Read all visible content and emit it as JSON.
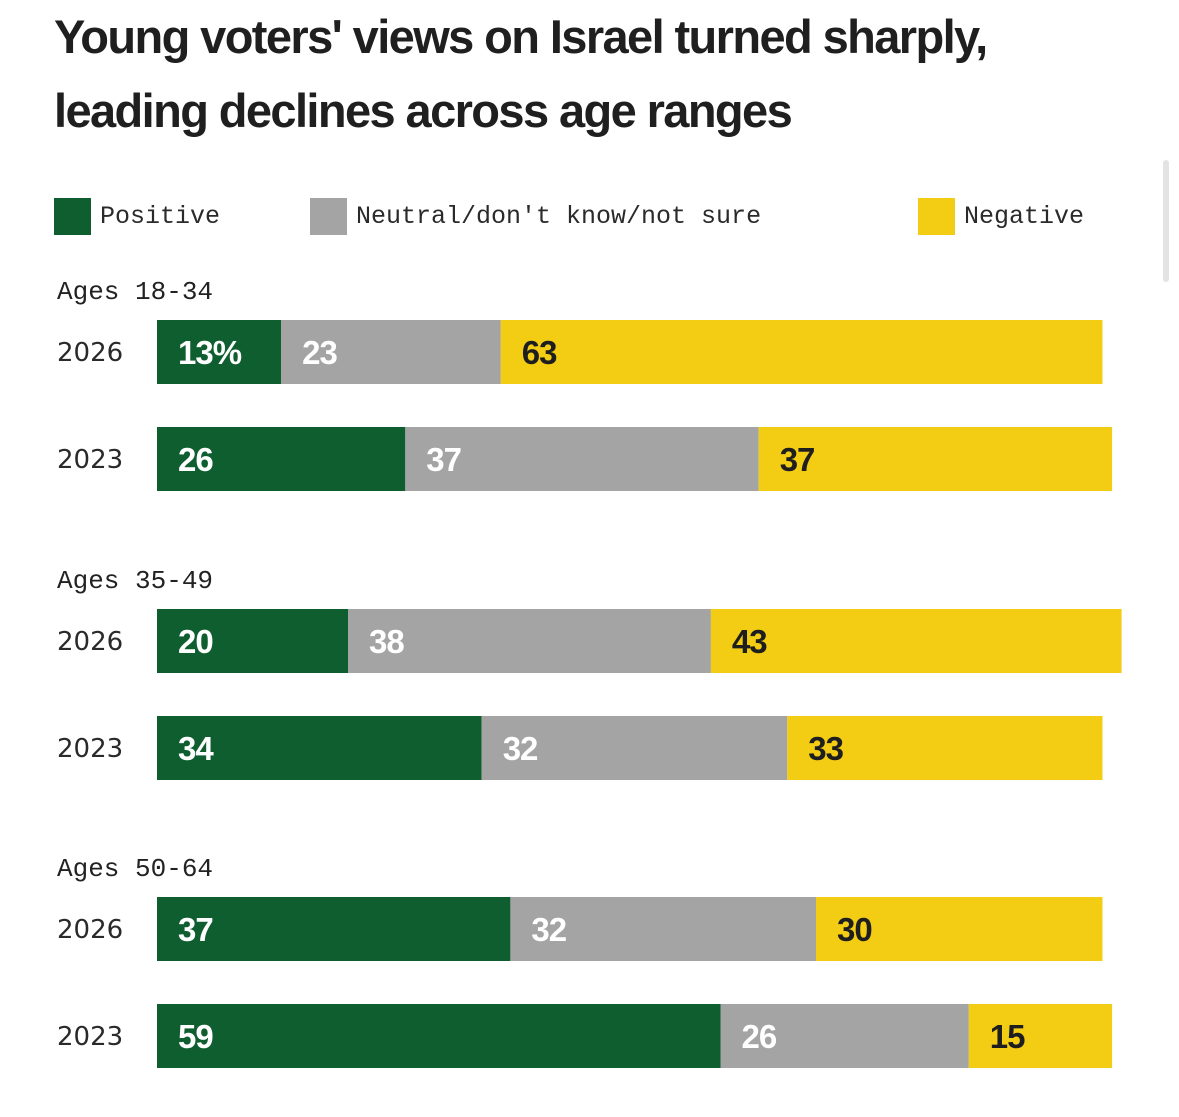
{
  "chart_data": {
    "type": "bar",
    "orientation": "horizontal-stacked",
    "title": "Young voters' views on Israel turned sharply, leading declines across age ranges",
    "legend": [
      {
        "name": "Positive",
        "color": "#0f5e2f"
      },
      {
        "name": "Neutral/don't know/not sure",
        "color": "#a4a4a4"
      },
      {
        "name": "Negative",
        "color": "#f3cd14"
      }
    ],
    "value_text_colors": [
      "#ffffff",
      "#ffffff",
      "#1e1e1e"
    ],
    "groups": [
      {
        "label": "Ages 18-34",
        "rows": [
          {
            "year": "2026",
            "values": [
              13,
              23,
              63
            ],
            "labels": [
              "13%",
              "23",
              "63"
            ]
          },
          {
            "year": "2023",
            "values": [
              26,
              37,
              37
            ],
            "labels": [
              "26",
              "37",
              "37"
            ]
          }
        ]
      },
      {
        "label": "Ages 35-49",
        "rows": [
          {
            "year": "2026",
            "values": [
              20,
              38,
              43
            ],
            "labels": [
              "20",
              "38",
              "43"
            ]
          },
          {
            "year": "2023",
            "values": [
              34,
              32,
              33
            ],
            "labels": [
              "34",
              "32",
              "33"
            ]
          }
        ]
      },
      {
        "label": "Ages 50-64",
        "rows": [
          {
            "year": "2026",
            "values": [
              37,
              32,
              30
            ],
            "labels": [
              "37",
              "32",
              "30"
            ]
          },
          {
            "year": "2023",
            "values": [
              59,
              26,
              15
            ],
            "labels": [
              "59",
              "26",
              "15"
            ]
          }
        ]
      }
    ],
    "xlim": [
      0,
      100
    ]
  }
}
